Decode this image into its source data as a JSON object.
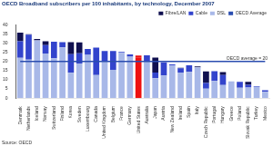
{
  "chart_data": {
    "type": "bar",
    "title": "OECD Broadband subscribers per 100 inhabitants, by technology, December 2007",
    "source": "Source: OECD",
    "annotations": [
      {
        "text": "OECD average = 20",
        "value": 20
      }
    ],
    "categories": [
      "Denmark",
      "Netherlands",
      "Iceland",
      "Norway",
      "Switzerland",
      "Finland",
      "Korea",
      "Sweden",
      "Luxembourg",
      "Canada",
      "United Kingdom",
      "Belgium",
      "France",
      "Germany",
      "United States",
      "Australia",
      "Japan",
      "Austria",
      "New Zealand",
      "Ireland",
      "Spain",
      "Italy",
      "Czech Republic",
      "Portugal",
      "Hungary",
      "Greece",
      "Poland",
      "Slovak Republic",
      "Turkey",
      "Mexico"
    ],
    "stacked": true,
    "legend": "top-right",
    "grid": false,
    "ylim": [
      0,
      40
    ],
    "yticks": [
      0,
      5,
      10,
      15,
      20,
      25,
      30,
      35,
      40
    ],
    "series": [
      {
        "name": "DSL",
        "type": "bar",
        "color": "#a8b8e8",
        "values": [
          22,
          21,
          31.5,
          24.3,
          21.7,
          27.6,
          13.8,
          18.9,
          23.6,
          12.5,
          20.1,
          15.4,
          24.6,
          22.6,
          9.9,
          19.9,
          10.8,
          12.3,
          17.7,
          13.9,
          14.3,
          16.8,
          5.1,
          9.4,
          7.1,
          9.1,
          5.6,
          5.8,
          6.1,
          3.4
        ],
        "colors": [
          "#a8b8e8",
          "#a8b8e8",
          "#a8b8e8",
          "#a8b8e8",
          "#a8b8e8",
          "#a8b8e8",
          "#a8b8e8",
          "#a8b8e8",
          "#a8b8e8",
          "#a8b8e8",
          "#a8b8e8",
          "#a8b8e8",
          "#a8b8e8",
          "#a8b8e8",
          "#ee1111",
          "#a8b8e8",
          "#a8b8e8",
          "#a8b8e8",
          "#a8b8e8",
          "#a8b8e8",
          "#a8b8e8",
          "#a8b8e8",
          "#a8b8e8",
          "#a8b8e8",
          "#a8b8e8",
          "#a8b8e8",
          "#a8b8e8",
          "#a8b8e8",
          "#a8b8e8",
          "#a8b8e8"
        ]
      },
      {
        "name": "Cable",
        "type": "bar",
        "color": "#3344cc",
        "values": [
          9,
          13.5,
          0,
          4.6,
          9,
          2.9,
          10.1,
          5.5,
          3.2,
          15,
          5.6,
          10.2,
          0.6,
          1.2,
          12.3,
          3.4,
          3.1,
          7.2,
          0.6,
          2.3,
          3.6,
          0,
          3.1,
          5.3,
          5.4,
          0,
          3.3,
          1.4,
          0.4,
          0.9
        ],
        "colors": [
          "#3344cc",
          "#3344cc",
          "#3344cc",
          "#3344cc",
          "#3344cc",
          "#3344cc",
          "#3344cc",
          "#3344cc",
          "#3344cc",
          "#3344cc",
          "#3344cc",
          "#3344cc",
          "#3344cc",
          "#3344cc",
          "#ee1111",
          "#3344cc",
          "#3344cc",
          "#3344cc",
          "#3344cc",
          "#3344cc",
          "#3344cc",
          "#3344cc",
          "#3344cc",
          "#3344cc",
          "#3344cc",
          "#3344cc",
          "#3344cc",
          "#3344cc",
          "#3344cc",
          "#3344cc"
        ]
      },
      {
        "name": "Fibre/LAN",
        "type": "bar",
        "color": "#101050",
        "values": [
          4.6,
          0.3,
          0.7,
          2,
          0,
          0,
          6.6,
          6,
          0,
          0,
          0,
          0,
          0,
          0,
          1,
          0,
          8.2,
          0,
          0,
          0.3,
          0,
          0.5,
          6.3,
          0,
          1.6,
          0,
          0,
          1.6,
          0,
          0
        ],
        "colors": [
          "#101050",
          "#101050",
          "#101050",
          "#101050",
          "#101050",
          "#101050",
          "#101050",
          "#101050",
          "#101050",
          "#101050",
          "#101050",
          "#101050",
          "#101050",
          "#101050",
          "#ee1111",
          "#101050",
          "#101050",
          "#101050",
          "#101050",
          "#101050",
          "#101050",
          "#101050",
          "#101050",
          "#101050",
          "#101050",
          "#101050",
          "#101050",
          "#101050",
          "#101050",
          "#101050"
        ]
      },
      {
        "name": "OECD Average",
        "type": "line",
        "color": "#2a4db0",
        "values": [
          20,
          20,
          20,
          20,
          20,
          20,
          20,
          20,
          20,
          20,
          20,
          20,
          20,
          20,
          20,
          20,
          20,
          20,
          20,
          20,
          20,
          20,
          20,
          20,
          20,
          20,
          20,
          20,
          20,
          20
        ]
      }
    ]
  }
}
